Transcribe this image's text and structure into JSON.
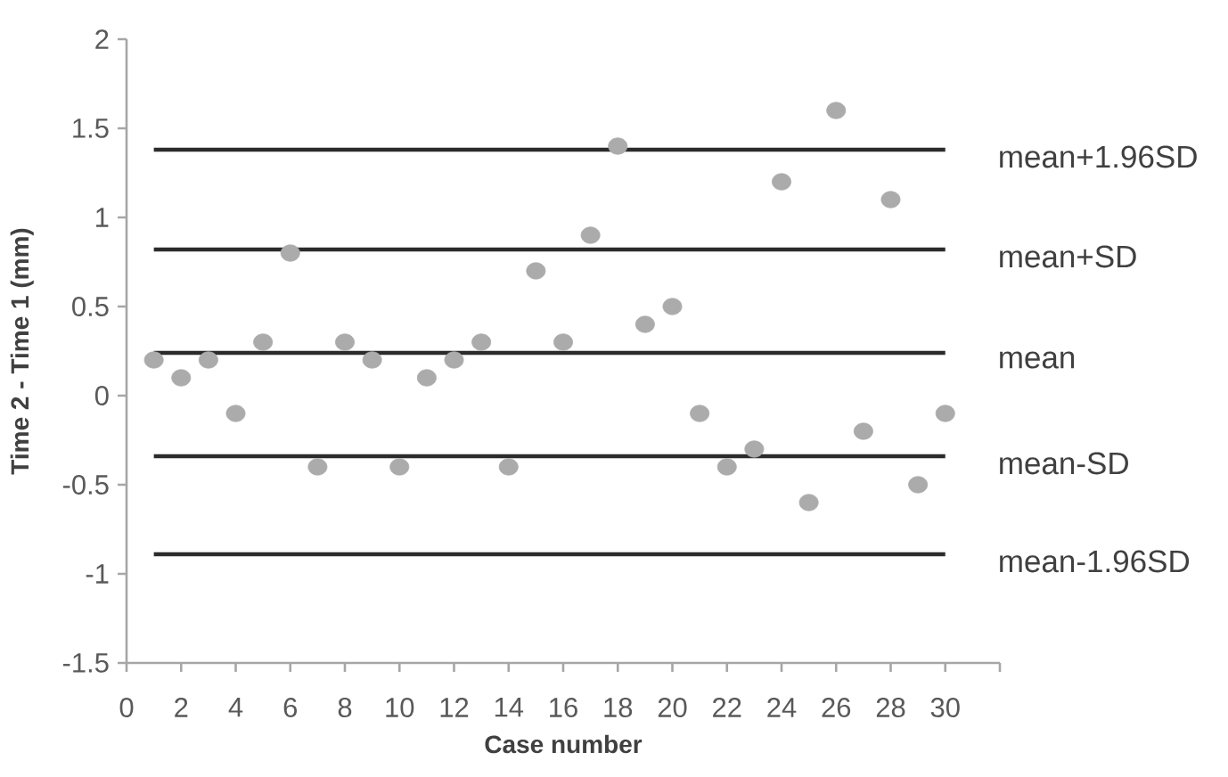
{
  "chart_data": {
    "type": "scatter",
    "xlabel": "Case number",
    "ylabel": "Time 2 - Time 1 (mm)",
    "xlim": [
      0,
      32
    ],
    "ylim": [
      -1.5,
      2
    ],
    "xticks": [
      0,
      2,
      4,
      6,
      8,
      10,
      12,
      14,
      16,
      18,
      20,
      22,
      24,
      26,
      28,
      30,
      {
        "value": 32,
        "label": null
      }
    ],
    "yticks": [
      -1.5,
      -1,
      -0.5,
      0,
      0.5,
      1,
      1.5,
      2
    ],
    "marker": "circle",
    "series": [
      {
        "color": "#ababab",
        "x": [
          1,
          2,
          3,
          4,
          5,
          6,
          7,
          8,
          9,
          10,
          11,
          12,
          13,
          14,
          15,
          16,
          17,
          18,
          19,
          20,
          21,
          22,
          23,
          24,
          25,
          26,
          27,
          28,
          29,
          30
        ],
        "values": [
          0.2,
          0.1,
          0.2,
          -0.1,
          0.3,
          0.8,
          -0.4,
          0.3,
          0.2,
          -0.4,
          0.1,
          0.2,
          0.3,
          -0.4,
          0.7,
          0.3,
          0.9,
          1.4,
          0.4,
          0.5,
          -0.1,
          -0.4,
          -0.3,
          1.2,
          -0.6,
          1.6,
          -0.2,
          1.1,
          -0.5,
          -0.1
        ]
      },
      {
        "type": "line",
        "name": "mean+1.96SD",
        "color": "#2b2b2b",
        "marker": "none",
        "x": [
          1,
          30
        ],
        "values": [
          1.38,
          1.38
        ]
      },
      {
        "type": "line",
        "name": "mean+SD",
        "color": "#2b2b2b",
        "marker": "none",
        "x": [
          1,
          30
        ],
        "values": [
          0.82,
          0.82
        ]
      },
      {
        "type": "line",
        "name": "mean",
        "color": "#2b2b2b",
        "marker": "none",
        "x": [
          1,
          30
        ],
        "values": [
          0.24,
          0.24
        ]
      },
      {
        "type": "line",
        "name": "mean-SD",
        "color": "#2b2b2b",
        "marker": "none",
        "x": [
          1,
          30
        ],
        "values": [
          -0.34,
          -0.34
        ]
      },
      {
        "type": "line",
        "name": "mean-1.96SD",
        "color": "#2b2b2b",
        "marker": "none",
        "x": [
          1,
          30
        ],
        "values": [
          -0.89,
          -0.89
        ]
      }
    ]
  }
}
